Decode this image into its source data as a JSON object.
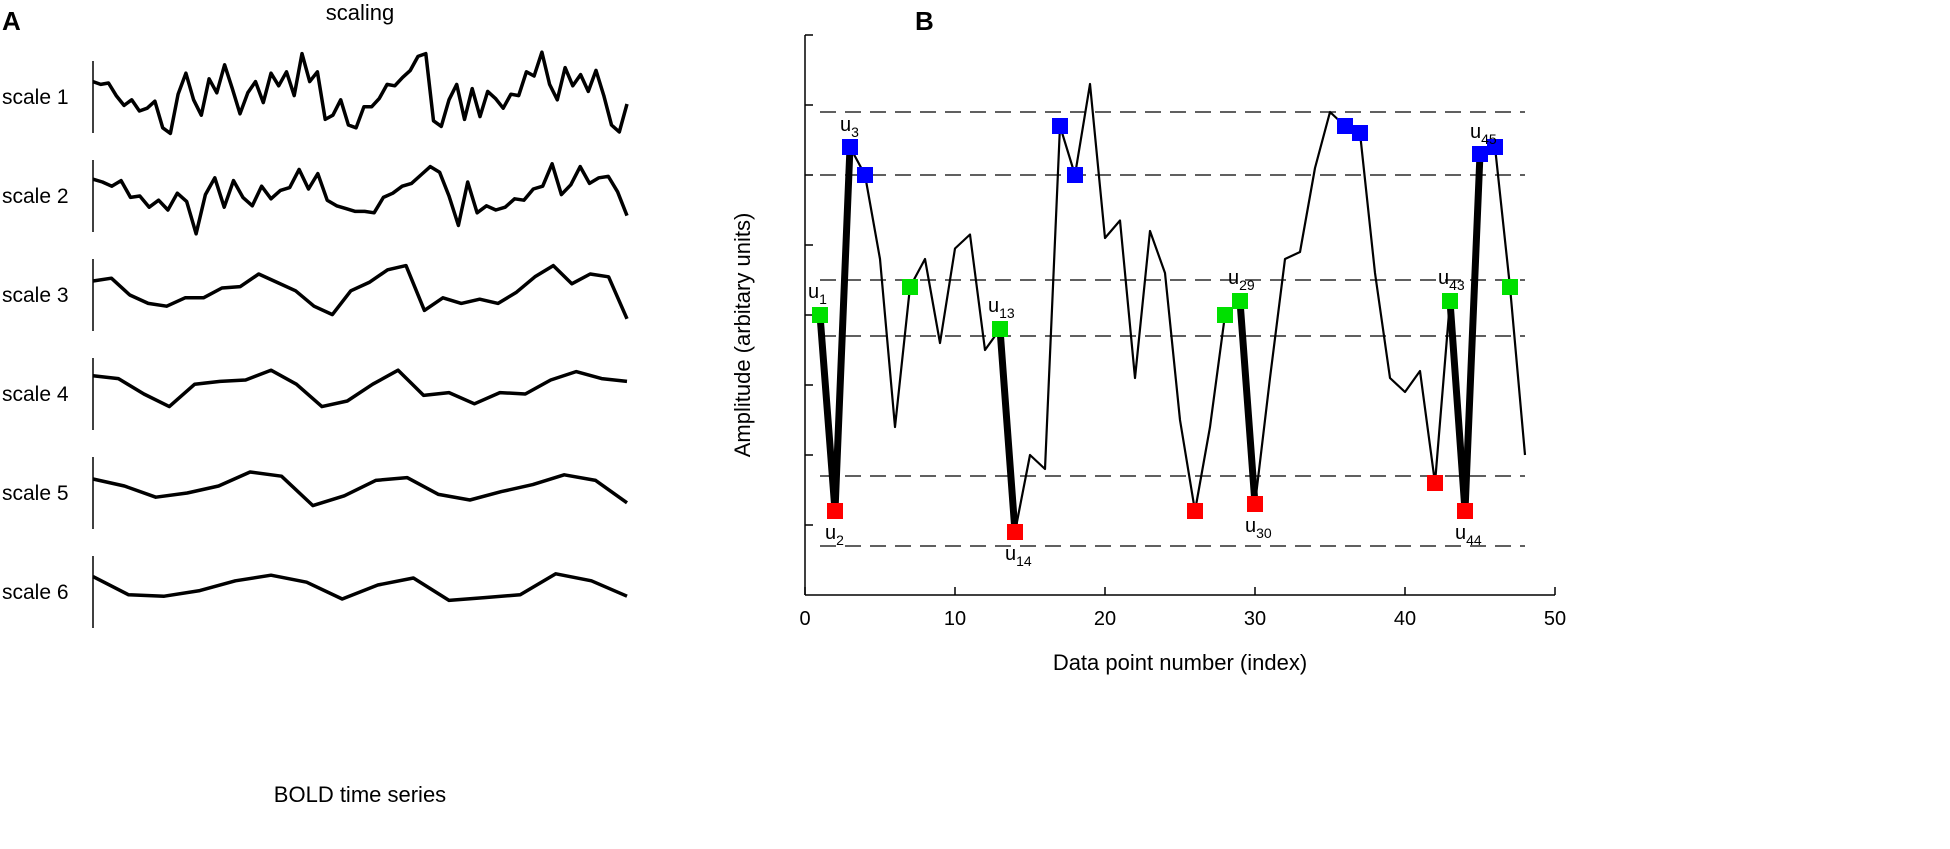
{
  "panel_a_label": "A",
  "panel_b_label": "B",
  "chart_data": [
    {
      "type": "line",
      "panel": "A",
      "title": "scaling",
      "xlabel": "BOLD time series",
      "ylabel": "",
      "series": [
        {
          "name": "scale 1",
          "values": [
            0.55,
            0.45,
            0.5,
            0.05,
            -0.3,
            -0.1,
            -0.5,
            -0.4,
            -0.15,
            -1.1,
            -1.3,
            0.1,
            0.85,
            -0.1,
            -0.65,
            0.65,
            0.15,
            1.15,
            0.3,
            -0.6,
            0.15,
            0.55,
            -0.2,
            0.85,
            0.4,
            0.9,
            0.05,
            1.55,
            0.55,
            0.9,
            -0.8,
            -0.65,
            -0.1,
            -1.0,
            -1.1,
            -0.35,
            -0.35,
            -0.05,
            0.45,
            0.4,
            0.7,
            0.95,
            1.45,
            1.55,
            -0.85,
            -1.05,
            -0.1,
            0.45,
            -0.8,
            0.3,
            -0.7,
            0.2,
            -0.05,
            -0.4,
            0.1,
            0.05,
            0.9,
            0.75,
            1.6,
            0.45,
            -0.1,
            1.05,
            0.4,
            0.8,
            0.2,
            0.95,
            0.05,
            -1.0,
            -1.25,
            -0.25
          ]
        },
        {
          "name": "scale 2",
          "values": [
            0.6,
            0.5,
            0.35,
            0.55,
            -0.05,
            0.0,
            -0.4,
            -0.15,
            -0.5,
            0.1,
            -0.2,
            -1.35,
            0.05,
            0.65,
            -0.4,
            0.55,
            -0.05,
            -0.35,
            0.35,
            -0.1,
            0.2,
            0.3,
            0.95,
            0.25,
            0.8,
            -0.15,
            -0.35,
            -0.45,
            -0.55,
            -0.55,
            -0.6,
            -0.05,
            0.1,
            0.35,
            0.45,
            0.75,
            1.05,
            0.85,
            0.0,
            -1.05,
            0.5,
            -0.6,
            -0.35,
            -0.5,
            -0.4,
            -0.1,
            -0.15,
            0.25,
            0.35,
            1.15,
            0.05,
            0.4,
            1.05,
            0.45,
            0.65,
            0.7,
            0.15,
            -0.7
          ]
        },
        {
          "name": "scale 3",
          "values": [
            0.5,
            0.6,
            0.0,
            -0.3,
            -0.4,
            -0.1,
            -0.1,
            0.25,
            0.3,
            0.75,
            0.45,
            0.15,
            -0.4,
            -0.7,
            0.15,
            0.45,
            0.9,
            1.05,
            -0.55,
            -0.1,
            -0.3,
            -0.15,
            -0.3,
            0.1,
            0.65,
            1.05,
            0.4,
            0.75,
            0.65,
            -0.85
          ]
        },
        {
          "name": "scale 4",
          "values": [
            0.65,
            0.55,
            0.0,
            -0.45,
            0.35,
            0.45,
            0.5,
            0.85,
            0.35,
            -0.45,
            -0.25,
            0.35,
            0.85,
            -0.05,
            0.05,
            -0.35,
            0.05,
            0.0,
            0.5,
            0.8,
            0.55,
            0.45
          ]
        },
        {
          "name": "scale 5",
          "values": [
            0.5,
            0.25,
            -0.15,
            0.0,
            0.25,
            0.75,
            0.6,
            -0.45,
            -0.1,
            0.45,
            0.55,
            -0.05,
            -0.25,
            0.05,
            0.3,
            0.65,
            0.45,
            -0.35
          ]
        },
        {
          "name": "scale 6",
          "values": [
            0.55,
            -0.1,
            -0.15,
            0.05,
            0.4,
            0.6,
            0.35,
            -0.25,
            0.25,
            0.5,
            -0.3,
            -0.2,
            -0.1,
            0.65,
            0.4,
            -0.15
          ]
        }
      ]
    },
    {
      "type": "line",
      "panel": "B",
      "title": "",
      "xlabel": "Data point number (index)",
      "ylabel": "Amplitude (arbitary units)",
      "xlim": [
        0,
        50
      ],
      "ylim": [
        0,
        8
      ],
      "xticks": [
        "0",
        "10",
        "20",
        "30",
        "40",
        "50"
      ],
      "ytick_count": 8,
      "dashed_levels": [
        0.7,
        1.7,
        3.7,
        4.5,
        6.0,
        6.9
      ],
      "series": [
        {
          "name": "signal",
          "x": [
            1,
            2,
            3,
            4,
            5,
            6,
            7,
            8,
            9,
            10,
            11,
            12,
            13,
            14,
            15,
            16,
            17,
            18,
            19,
            20,
            21,
            22,
            23,
            24,
            25,
            26,
            27,
            28,
            29,
            30,
            31,
            32,
            33,
            34,
            35,
            36,
            37,
            38,
            39,
            40,
            41,
            42,
            43,
            44,
            45,
            46,
            47,
            48
          ],
          "y": [
            4,
            1.2,
            6.4,
            6.0,
            4.8,
            2.4,
            4.4,
            4.8,
            3.6,
            4.95,
            5.15,
            3.5,
            3.8,
            0.9,
            2.0,
            1.8,
            6.7,
            6.0,
            7.3,
            5.1,
            5.35,
            3.1,
            5.2,
            4.6,
            2.5,
            1.2,
            2.4,
            4.0,
            4.2,
            1.3,
            3.1,
            4.8,
            4.9,
            6.1,
            6.9,
            6.7,
            6.6,
            4.6,
            3.1,
            2.9,
            3.2,
            1.6,
            4.2,
            1.2,
            6.3,
            6.4,
            4.4,
            2.0
          ]
        }
      ],
      "markers": [
        {
          "color": "#00e000",
          "x": [
            1,
            7,
            13,
            28,
            29,
            43,
            47
          ],
          "y": [
            4,
            4.4,
            3.8,
            4.0,
            4.2,
            4.2,
            4.4
          ]
        },
        {
          "color": "#ff0000",
          "x": [
            2,
            14,
            26,
            30,
            42,
            44
          ],
          "y": [
            1.2,
            0.9,
            1.2,
            1.3,
            1.6,
            1.2
          ]
        },
        {
          "color": "#0000ff",
          "x": [
            3,
            4,
            17,
            18,
            36,
            37,
            45,
            46
          ],
          "y": [
            6.4,
            6.0,
            6.7,
            6.0,
            6.7,
            6.6,
            6.3,
            6.4
          ]
        }
      ],
      "thick_segments": [
        [
          1,
          2
        ],
        [
          2,
          3
        ],
        [
          13,
          14
        ],
        [
          29,
          30
        ],
        [
          43,
          44
        ],
        [
          44,
          45
        ]
      ],
      "annotations": [
        {
          "text": "u",
          "sub": "1",
          "x": 1,
          "y": 4
        },
        {
          "text": "u",
          "sub": "2",
          "x": 2,
          "y": 1.2
        },
        {
          "text": "u",
          "sub": "3",
          "x": 3,
          "y": 6.4
        },
        {
          "text": "u",
          "sub": "13",
          "x": 13,
          "y": 3.8
        },
        {
          "text": "u",
          "sub": "14",
          "x": 14,
          "y": 0.9
        },
        {
          "text": "u",
          "sub": "29",
          "x": 29,
          "y": 4.2
        },
        {
          "text": "u",
          "sub": "30",
          "x": 30,
          "y": 1.3
        },
        {
          "text": "u",
          "sub": "43",
          "x": 43,
          "y": 4.2
        },
        {
          "text": "u",
          "sub": "44",
          "x": 44,
          "y": 1.2
        },
        {
          "text": "u",
          "sub": "45",
          "x": 45,
          "y": 6.3
        }
      ]
    }
  ]
}
